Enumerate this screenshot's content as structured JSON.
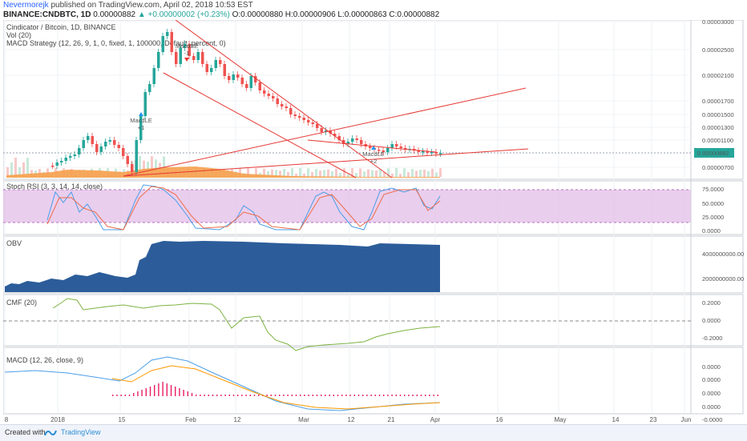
{
  "header": {
    "author": "Nevermorejk",
    "published": "published on TradingView.com, April 02, 2018 10:53 EST",
    "symbol_line": "BINANCE:CNDBTC, 1D",
    "last": "0.00000882",
    "change": "▲ +0.00000002 (+0.23%)",
    "ohlc": "O:0.00000880 H:0.00000906 L:0.00000863 C:0.00000882"
  },
  "main_pane": {
    "labels": [
      "Cindicator / Bitcoin, 1D, BINANCE",
      "Vol (20)",
      "MACD Strategy (12, 26, 9, 1, 0, fixed, 1, 100000, Default, percent, 0)"
    ],
    "price_ticks": [
      "0.00003000",
      "0.00002500",
      "0.00002100",
      "0.00001700",
      "0.00001500",
      "0.00001300",
      "0.00001100",
      "0.00000700"
    ],
    "current_price": "0.00000882",
    "signals": [
      {
        "text": "MacdLE",
        "sub": "+1",
        "color": "#2196f3"
      },
      {
        "text": "MacdSE",
        "sub": "-1",
        "color": "#e53935"
      },
      {
        "text": "MacdLE",
        "sub": "+2",
        "color": "#2196f3"
      }
    ]
  },
  "stoch_pane": {
    "label": "Stoch RSI (3, 3, 14, 14, close)",
    "ticks": [
      "75.0000",
      "50.0000",
      "25.0000",
      "0.0000"
    ]
  },
  "obv_pane": {
    "label": "OBV",
    "ticks": [
      "4000000000.0000",
      "2000000000.0000"
    ]
  },
  "cmf_pane": {
    "label": "CMF (20)",
    "ticks": [
      "0.2000",
      "0.0000",
      "-0.2000"
    ]
  },
  "macd_pane": {
    "label": "MACD (12, 26, close, 9)",
    "ticks": [
      "0.0000",
      "0.0000",
      "0.0000",
      "0.0000",
      "-0.0000"
    ]
  },
  "time_axis": [
    "8",
    "2018",
    "15",
    "Feb",
    "12",
    "Mar",
    "12",
    "21",
    "Apr",
    "16",
    "May",
    "14",
    "23",
    "Jun"
  ],
  "footer": {
    "created": "Created with",
    "brand": "TradingView"
  },
  "colors": {
    "up": "#26a69a",
    "down": "#ef5350",
    "trend": "#e53935",
    "stoch_band": "#e1bee7",
    "obv": "#2c5d9a",
    "cmf": "#7cb342",
    "macd": "#4a9ee8",
    "signal": "#ff9800",
    "hist": "#e91e63"
  }
}
